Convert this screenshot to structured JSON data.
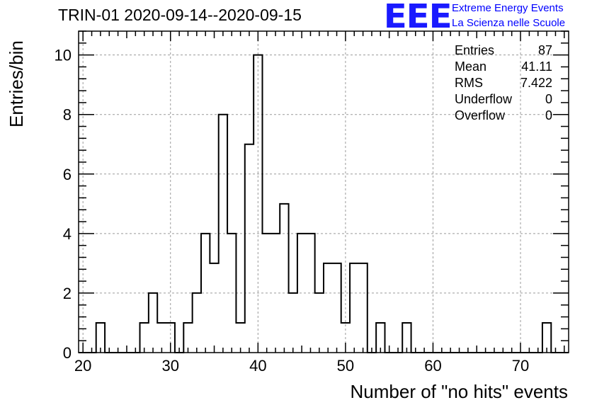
{
  "chart_data": {
    "type": "bar",
    "title": "TRIN-01 2020-09-14--2020-09-15",
    "xlabel": "Number of \"no hits\" events",
    "ylabel": "Entries/bin",
    "xlim": [
      19.5,
      75.5
    ],
    "ylim": [
      0,
      10.8
    ],
    "bin_width": 1,
    "x_ticks": [
      20,
      30,
      40,
      50,
      60,
      70
    ],
    "y_ticks": [
      0,
      2,
      4,
      6,
      8,
      10
    ],
    "grid": true,
    "bins": [
      {
        "x": 22,
        "count": 1
      },
      {
        "x": 27,
        "count": 1
      },
      {
        "x": 28,
        "count": 2
      },
      {
        "x": 29,
        "count": 1
      },
      {
        "x": 30,
        "count": 1
      },
      {
        "x": 32,
        "count": 1
      },
      {
        "x": 33,
        "count": 2
      },
      {
        "x": 34,
        "count": 4
      },
      {
        "x": 35,
        "count": 3
      },
      {
        "x": 36,
        "count": 8
      },
      {
        "x": 37,
        "count": 4
      },
      {
        "x": 38,
        "count": 1
      },
      {
        "x": 39,
        "count": 7
      },
      {
        "x": 40,
        "count": 10
      },
      {
        "x": 41,
        "count": 4
      },
      {
        "x": 42,
        "count": 4
      },
      {
        "x": 43,
        "count": 5
      },
      {
        "x": 44,
        "count": 2
      },
      {
        "x": 45,
        "count": 4
      },
      {
        "x": 46,
        "count": 4
      },
      {
        "x": 47,
        "count": 2
      },
      {
        "x": 48,
        "count": 3
      },
      {
        "x": 49,
        "count": 3
      },
      {
        "x": 50,
        "count": 1
      },
      {
        "x": 51,
        "count": 3
      },
      {
        "x": 52,
        "count": 3
      },
      {
        "x": 54,
        "count": 1
      },
      {
        "x": 57,
        "count": 1
      },
      {
        "x": 73,
        "count": 1
      }
    ],
    "stats": [
      {
        "label": "Entries",
        "value": "87"
      },
      {
        "label": "Mean",
        "value": "41.11"
      },
      {
        "label": "RMS",
        "value": "7.422"
      },
      {
        "label": "Underflow",
        "value": "0"
      },
      {
        "label": "Overflow",
        "value": "0"
      }
    ],
    "line_color": "#000000",
    "grid_color": "#9a9a9a"
  },
  "logo": {
    "mark": "EEE",
    "line1": "Extreme Energy Events",
    "line2": "La Scienza nelle Scuole",
    "color": "#0000ff"
  }
}
